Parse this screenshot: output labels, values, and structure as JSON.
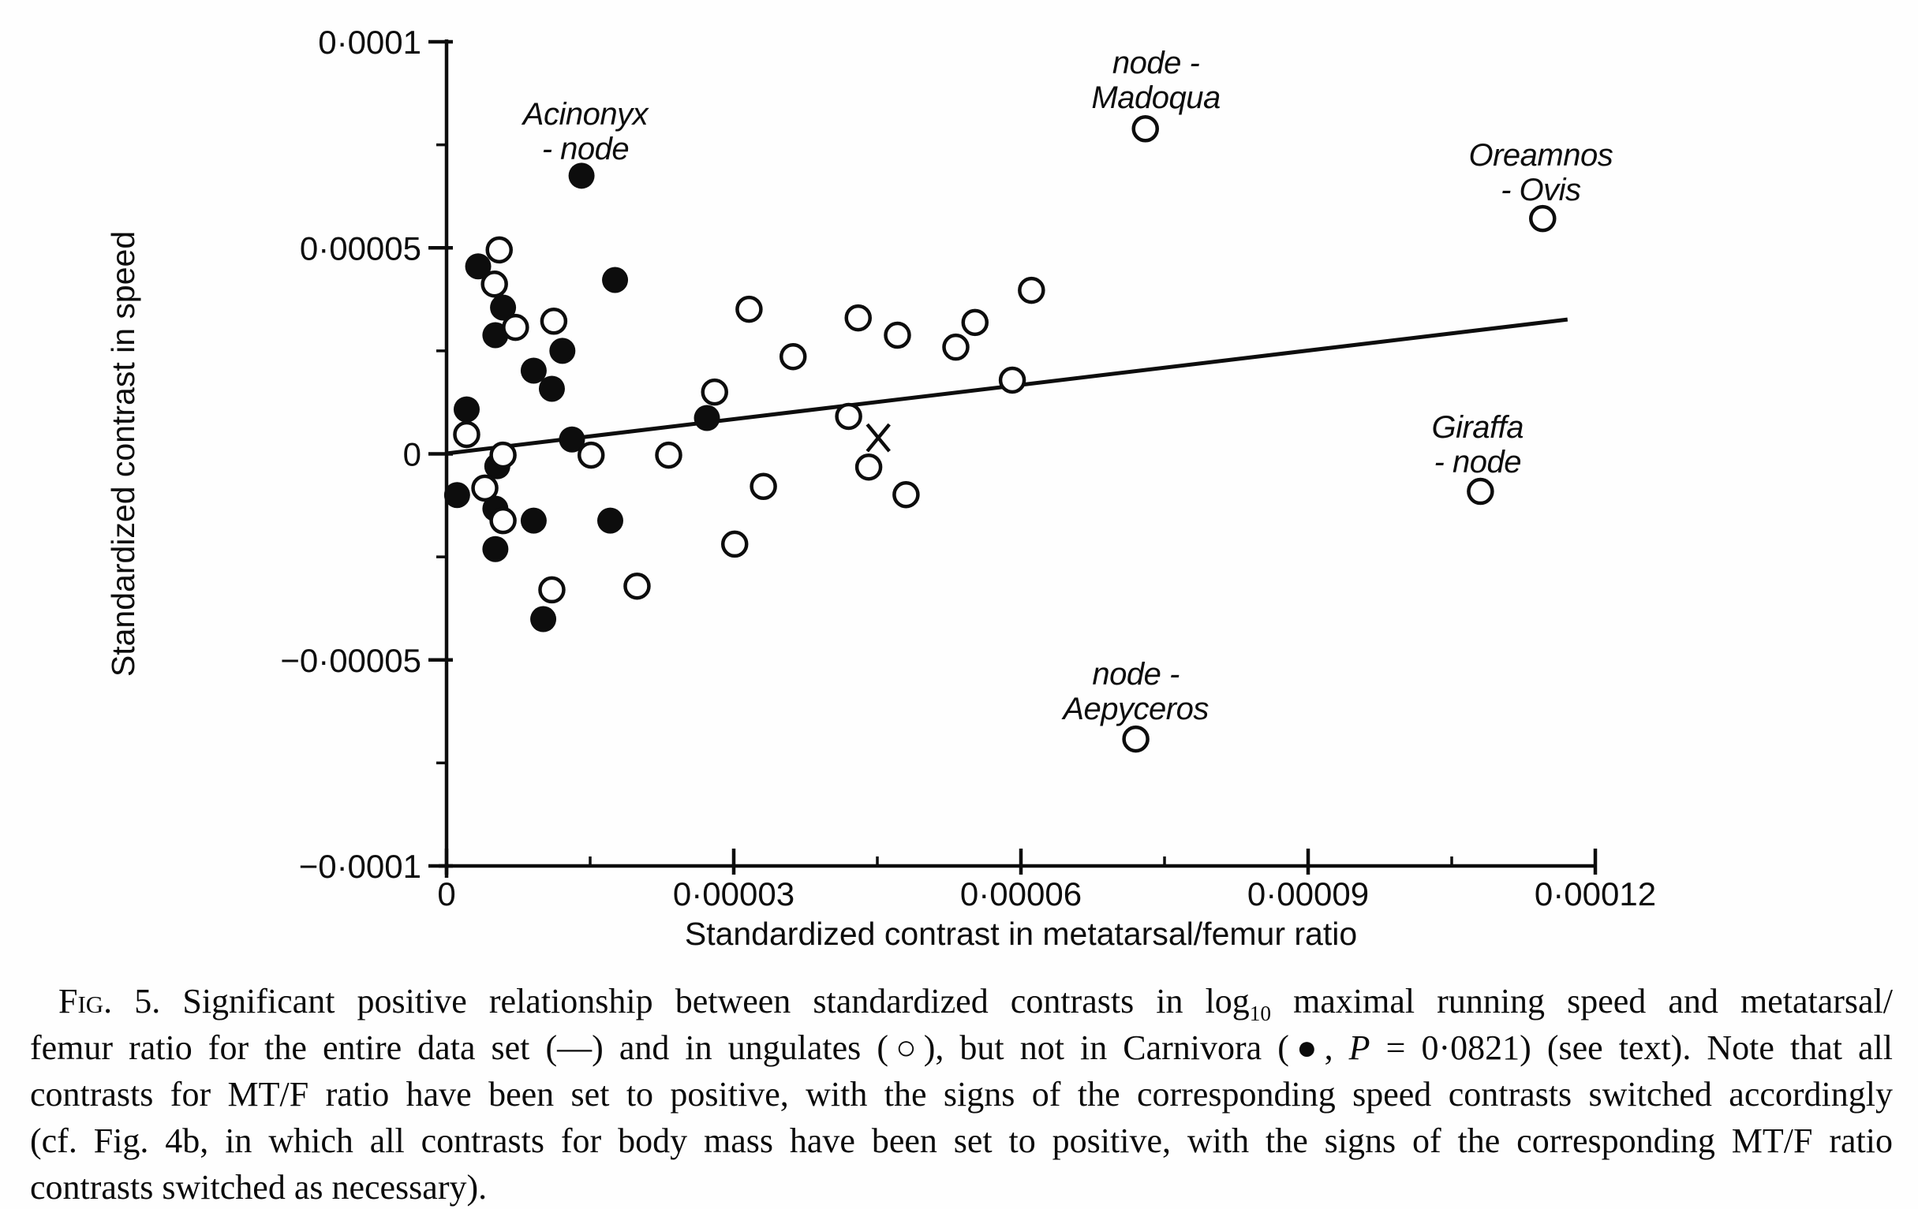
{
  "chart_data": {
    "type": "scatter",
    "title": "",
    "x_axis": {
      "title": "Standardized contrast in metatarsal/femur ratio",
      "range": [
        0,
        0.00012
      ],
      "tick_values": [
        0,
        3e-05,
        6e-05,
        9e-05,
        0.00012
      ],
      "tick_labels": [
        "0",
        "0·00003",
        "0·00006",
        "0·00009",
        "0·00012"
      ],
      "minor_tick_values": [
        1.5e-05,
        4.5e-05,
        7.5e-05,
        0.000105
      ]
    },
    "y_axis": {
      "title": "Standardized contrast in speed",
      "range": [
        -0.0001,
        0.0001
      ],
      "tick_values": [
        0.0001,
        5e-05,
        0,
        -5e-05,
        -0.0001
      ],
      "tick_labels": [
        "0·0001",
        "0·00005",
        "0",
        "−0·00005",
        "−0·0001"
      ],
      "minor_tick_values": [
        7.5e-05,
        2.5e-05,
        -2.5e-05,
        -7.5e-05
      ]
    },
    "grid": false,
    "legend": "none",
    "series": [
      {
        "name": "ungulates",
        "marker": "open-circle",
        "points": [
          [
            5.5e-06,
            4.95e-05
          ],
          [
            5e-06,
            4.12e-05
          ],
          [
            7.2e-06,
            3.07e-05
          ],
          [
            1.12e-05,
            3.22e-05
          ],
          [
            2.1e-06,
            4.7e-06
          ],
          [
            5.9e-06,
            -3e-07
          ],
          [
            4e-06,
            -8.3e-06
          ],
          [
            5.9e-06,
            -1.62e-05
          ],
          [
            1.1e-05,
            -3.3e-05
          ],
          [
            1.99e-05,
            -3.21e-05
          ],
          [
            1.51e-05,
            -3e-07
          ],
          [
            2.32e-05,
            -3e-07
          ],
          [
            2.8e-05,
            1.5e-05
          ],
          [
            3.16e-05,
            3.51e-05
          ],
          [
            3.62e-05,
            2.36e-05
          ],
          [
            3.31e-05,
            -7.9e-06
          ],
          [
            3.01e-05,
            -2.19e-05
          ],
          [
            4.3e-05,
            3.3e-05
          ],
          [
            4.71e-05,
            2.88e-05
          ],
          [
            4.2e-05,
            9.1e-06
          ],
          [
            4.41e-05,
            -3.2e-06
          ],
          [
            4.8e-05,
            -9.9e-06
          ],
          [
            5.32e-05,
            2.59e-05
          ],
          [
            5.52e-05,
            3.19e-05
          ],
          [
            5.91e-05,
            1.79e-05
          ],
          [
            6.11e-05,
            3.97e-05
          ],
          [
            7.3e-05,
            7.89e-05
          ],
          [
            7.2e-05,
            -6.92e-05
          ],
          [
            0.000108,
            -9.1e-06
          ],
          [
            0.0001145,
            5.71e-05
          ]
        ]
      },
      {
        "name": "Carnivora",
        "marker": "filled-circle",
        "points": [
          [
            1.41e-05,
            6.75e-05
          ],
          [
            3.3e-06,
            4.55e-05
          ],
          [
            1.76e-05,
            4.22e-05
          ],
          [
            5.9e-06,
            3.55e-05
          ],
          [
            5.1e-06,
            2.88e-05
          ],
          [
            1.21e-05,
            2.5e-05
          ],
          [
            9.1e-06,
            2.02e-05
          ],
          [
            1.1e-05,
            1.58e-05
          ],
          [
            2.1e-06,
            1.08e-05
          ],
          [
            1.31e-05,
            3.5e-06
          ],
          [
            5.3e-06,
            -3e-06
          ],
          [
            1.1e-06,
            -1e-05
          ],
          [
            5.1e-06,
            -1.33e-05
          ],
          [
            9.1e-06,
            -1.62e-05
          ],
          [
            1.71e-05,
            -1.62e-05
          ],
          [
            5.1e-06,
            -2.31e-05
          ],
          [
            1.01e-05,
            -4.01e-05
          ],
          [
            2.72e-05,
            8.7e-06
          ]
        ]
      },
      {
        "name": "unlabeled-x",
        "marker": "x",
        "points": [
          [
            4.51e-05,
            3.9e-06
          ]
        ]
      }
    ],
    "regression_line": {
      "x": [
        0,
        0.0001171
      ],
      "y": [
        1e-07,
        3.26e-05
      ]
    },
    "annotations": [
      {
        "lines": [
          "Acinonyx",
          "- node"
        ],
        "x": 1.45e-05,
        "y": 7.99e-05
      },
      {
        "lines": [
          "node -",
          "Madoqua"
        ],
        "x": 7.41e-05,
        "y": 9.23e-05
      },
      {
        "lines": [
          "Oreamnos",
          "- Ovis"
        ],
        "x": 0.0001143,
        "y": 7e-05
      },
      {
        "lines": [
          "Giraffa",
          "- node"
        ],
        "x": 0.0001077,
        "y": 3.9e-06
      },
      {
        "lines": [
          "node -",
          "Aepyceros"
        ],
        "x": 7.2e-05,
        "y": -5.6e-05
      }
    ]
  },
  "caption": {
    "line1": {
      "fig_label": "Fig.",
      "num": " 5. ",
      "pre": "Significant positive relationship between standardized contrasts in log",
      "sub": "10",
      "post": " maximal running speed and metatarsal/"
    },
    "line2": {
      "pre": "femur ratio for the entire data set (—) and in ungulates (○), but not in Carnivora (●, ",
      "p": "P",
      "post": " = 0·0821) (see text). Note that all"
    },
    "line3": "contrasts for MT/F ratio have been set to positive, with the signs of the corresponding speed contrasts switched accordingly",
    "line4": "(cf. Fig. 4b, in which all contrasts for body mass have been set to positive, with the signs of the corresponding MT/F ratio",
    "line5": "contrasts switched as necessary)."
  },
  "ink_color": "#0d0d0d"
}
